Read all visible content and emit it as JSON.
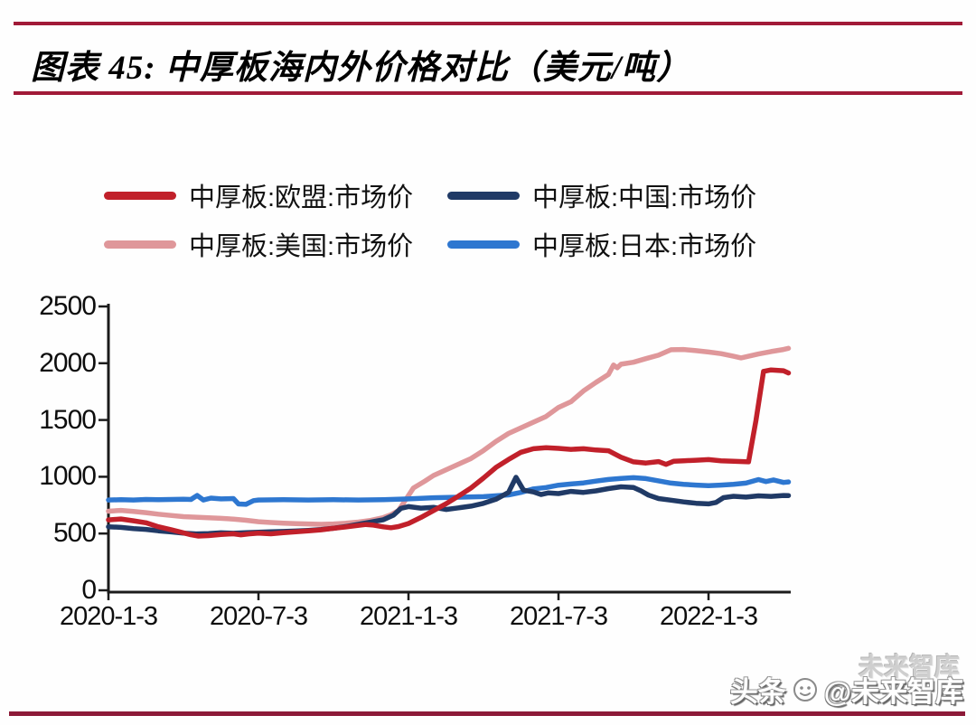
{
  "title": {
    "text": "图表 45:  中厚板海内外价格对比（美元/吨）"
  },
  "legend": {
    "items": [
      {
        "label": "中厚板:欧盟:市场价",
        "color": "#c1202a"
      },
      {
        "label": "中厚板:中国:市场价",
        "color": "#203a66"
      },
      {
        "label": "中厚板:美国:市场价",
        "color": "#df979a"
      },
      {
        "label": "中厚板:日本:市场价",
        "color": "#2e77d0"
      }
    ]
  },
  "watermark": {
    "prefix": "头条",
    "handle": "@未来智库",
    "ghost": "未来智库"
  },
  "chart_data": {
    "type": "line",
    "title": "图表 45: 中厚板海内外价格对比（美元/吨）",
    "xlabel": "",
    "ylabel": "",
    "ylim": [
      0,
      2500
    ],
    "y_ticks": [
      0,
      500,
      1000,
      1500,
      2000,
      2500
    ],
    "x_unit": "months since 2020-01-03",
    "x_tick_months": [
      0,
      6,
      12,
      18,
      24
    ],
    "x_tick_labels": [
      "2020-1-3",
      "2020-7-3",
      "2021-1-3",
      "2021-7-3",
      "2022-1-3"
    ],
    "grid": false,
    "legend_position": "top",
    "series": [
      {
        "name": "中厚板:美国:市场价",
        "color": "#df979a",
        "points": [
          [
            0,
            697
          ],
          [
            0.5,
            704
          ],
          [
            1,
            694
          ],
          [
            1.5,
            684
          ],
          [
            2,
            670
          ],
          [
            2.5,
            659
          ],
          [
            3,
            649
          ],
          [
            3.5,
            644
          ],
          [
            4,
            639
          ],
          [
            4.5,
            634
          ],
          [
            5,
            627
          ],
          [
            5.5,
            617
          ],
          [
            6,
            604
          ],
          [
            6.5,
            597
          ],
          [
            7,
            591
          ],
          [
            7.5,
            587
          ],
          [
            8,
            584
          ],
          [
            8.5,
            581
          ],
          [
            9,
            584
          ],
          [
            9.5,
            591
          ],
          [
            10,
            601
          ],
          [
            10.5,
            616
          ],
          [
            11,
            641
          ],
          [
            11.3,
            666
          ],
          [
            11.6,
            702
          ],
          [
            11.9,
            801
          ],
          [
            12.2,
            901
          ],
          [
            12.65,
            961
          ],
          [
            13,
            1011
          ],
          [
            13.5,
            1061
          ],
          [
            14,
            1111
          ],
          [
            14.5,
            1161
          ],
          [
            15,
            1231
          ],
          [
            15.5,
            1311
          ],
          [
            16,
            1381
          ],
          [
            16.5,
            1431
          ],
          [
            17,
            1481
          ],
          [
            17.5,
            1531
          ],
          [
            18,
            1611
          ],
          [
            18.5,
            1661
          ],
          [
            19,
            1756
          ],
          [
            19.5,
            1831
          ],
          [
            20,
            1901
          ],
          [
            20.2,
            1984
          ],
          [
            20.35,
            1960
          ],
          [
            20.5,
            1991
          ],
          [
            21,
            2009
          ],
          [
            21.5,
            2041
          ],
          [
            22,
            2071
          ],
          [
            22.5,
            2119
          ],
          [
            23,
            2121
          ],
          [
            23.5,
            2111
          ],
          [
            24,
            2099
          ],
          [
            24.5,
            2084
          ],
          [
            25,
            2061
          ],
          [
            25.3,
            2047
          ],
          [
            26,
            2081
          ],
          [
            26.5,
            2103
          ],
          [
            27,
            2121
          ],
          [
            27.2,
            2131
          ]
        ]
      },
      {
        "name": "中厚板:日本:市场价",
        "color": "#2e77d0",
        "points": [
          [
            0,
            795
          ],
          [
            0.5,
            798
          ],
          [
            1,
            795
          ],
          [
            1.5,
            800
          ],
          [
            2,
            798
          ],
          [
            2.5,
            800
          ],
          [
            3,
            802
          ],
          [
            3.3,
            800
          ],
          [
            3.55,
            835
          ],
          [
            3.8,
            795
          ],
          [
            4.1,
            812
          ],
          [
            4.5,
            805
          ],
          [
            5,
            808
          ],
          [
            5.2,
            760
          ],
          [
            5.5,
            757
          ],
          [
            5.8,
            790
          ],
          [
            6,
            795
          ],
          [
            7,
            798
          ],
          [
            8,
            795
          ],
          [
            9,
            798
          ],
          [
            10,
            795
          ],
          [
            11,
            798
          ],
          [
            12,
            805
          ],
          [
            13,
            815
          ],
          [
            14,
            820
          ],
          [
            15,
            825
          ],
          [
            16,
            840
          ],
          [
            16.5,
            862
          ],
          [
            17,
            893
          ],
          [
            17.5,
            905
          ],
          [
            18,
            926
          ],
          [
            18.5,
            936
          ],
          [
            19,
            946
          ],
          [
            19.5,
            962
          ],
          [
            20,
            976
          ],
          [
            20.5,
            986
          ],
          [
            21,
            992
          ],
          [
            21.5,
            984
          ],
          [
            22,
            964
          ],
          [
            22.5,
            944
          ],
          [
            23,
            934
          ],
          [
            23.5,
            927
          ],
          [
            24,
            921
          ],
          [
            24.5,
            927
          ],
          [
            25,
            934
          ],
          [
            25.5,
            944
          ],
          [
            26,
            975
          ],
          [
            26.3,
            958
          ],
          [
            26.6,
            972
          ],
          [
            27,
            950
          ],
          [
            27.2,
            955
          ]
        ]
      },
      {
        "name": "中厚板:中国:市场价",
        "color": "#203a66",
        "points": [
          [
            0,
            560
          ],
          [
            0.5,
            554
          ],
          [
            1,
            544
          ],
          [
            1.5,
            537
          ],
          [
            2,
            524
          ],
          [
            2.5,
            514
          ],
          [
            3,
            504
          ],
          [
            3.5,
            497
          ],
          [
            4,
            500
          ],
          [
            4.5,
            506
          ],
          [
            5,
            502
          ],
          [
            5.5,
            508
          ],
          [
            6,
            512
          ],
          [
            6.5,
            515
          ],
          [
            7,
            518
          ],
          [
            7.5,
            522
          ],
          [
            8,
            528
          ],
          [
            8.5,
            536
          ],
          [
            9,
            546
          ],
          [
            9.5,
            562
          ],
          [
            10,
            582
          ],
          [
            10.5,
            602
          ],
          [
            11,
            622
          ],
          [
            11.4,
            662
          ],
          [
            11.7,
            722
          ],
          [
            12,
            737
          ],
          [
            12.5,
            724
          ],
          [
            13,
            731
          ],
          [
            13.5,
            712
          ],
          [
            14,
            726
          ],
          [
            14.5,
            741
          ],
          [
            15,
            766
          ],
          [
            15.5,
            802
          ],
          [
            16,
            862
          ],
          [
            16.3,
            995
          ],
          [
            16.6,
            882
          ],
          [
            17,
            866
          ],
          [
            17.3,
            844
          ],
          [
            17.6,
            858
          ],
          [
            18,
            852
          ],
          [
            18.5,
            871
          ],
          [
            19,
            862
          ],
          [
            19.5,
            876
          ],
          [
            20,
            896
          ],
          [
            20.5,
            912
          ],
          [
            21,
            905
          ],
          [
            21.3,
            876
          ],
          [
            21.6,
            838
          ],
          [
            22,
            808
          ],
          [
            22.5,
            794
          ],
          [
            23,
            779
          ],
          [
            23.5,
            767
          ],
          [
            24,
            761
          ],
          [
            24.3,
            774
          ],
          [
            24.6,
            816
          ],
          [
            25,
            828
          ],
          [
            25.5,
            821
          ],
          [
            26,
            832
          ],
          [
            26.5,
            827
          ],
          [
            27,
            835
          ],
          [
            27.2,
            834
          ]
        ]
      },
      {
        "name": "中厚板:欧盟:市场价",
        "color": "#c1202a",
        "points": [
          [
            0,
            620
          ],
          [
            0.5,
            628
          ],
          [
            1,
            612
          ],
          [
            1.5,
            595
          ],
          [
            2,
            560
          ],
          [
            2.5,
            534
          ],
          [
            3,
            506
          ],
          [
            3.3,
            489
          ],
          [
            3.6,
            478
          ],
          [
            4,
            482
          ],
          [
            4.5,
            492
          ],
          [
            5,
            498
          ],
          [
            5.3,
            489
          ],
          [
            5.6,
            497
          ],
          [
            6,
            503
          ],
          [
            6.5,
            498
          ],
          [
            7,
            507
          ],
          [
            7.5,
            515
          ],
          [
            8,
            523
          ],
          [
            8.5,
            533
          ],
          [
            9,
            546
          ],
          [
            9.5,
            558
          ],
          [
            10,
            572
          ],
          [
            10.3,
            580
          ],
          [
            10.6,
            574
          ],
          [
            11,
            559
          ],
          [
            11.3,
            551
          ],
          [
            11.6,
            561
          ],
          [
            12,
            588
          ],
          [
            12.5,
            642
          ],
          [
            13,
            702
          ],
          [
            13.5,
            762
          ],
          [
            14,
            830
          ],
          [
            14.5,
            901
          ],
          [
            15,
            989
          ],
          [
            15.5,
            1082
          ],
          [
            16,
            1152
          ],
          [
            16.5,
            1216
          ],
          [
            17,
            1247
          ],
          [
            17.5,
            1256
          ],
          [
            18,
            1250
          ],
          [
            18.5,
            1241
          ],
          [
            19,
            1247
          ],
          [
            19.5,
            1236
          ],
          [
            20,
            1229
          ],
          [
            20.5,
            1172
          ],
          [
            21,
            1131
          ],
          [
            21.5,
            1121
          ],
          [
            22,
            1134
          ],
          [
            22.3,
            1109
          ],
          [
            22.6,
            1136
          ],
          [
            23,
            1141
          ],
          [
            23.5,
            1146
          ],
          [
            24,
            1151
          ],
          [
            24.5,
            1141
          ],
          [
            25,
            1136
          ],
          [
            25.6,
            1131
          ],
          [
            25.9,
            1500
          ],
          [
            26.2,
            1928
          ],
          [
            26.5,
            1941
          ],
          [
            27,
            1934
          ],
          [
            27.2,
            1914
          ]
        ]
      }
    ]
  }
}
